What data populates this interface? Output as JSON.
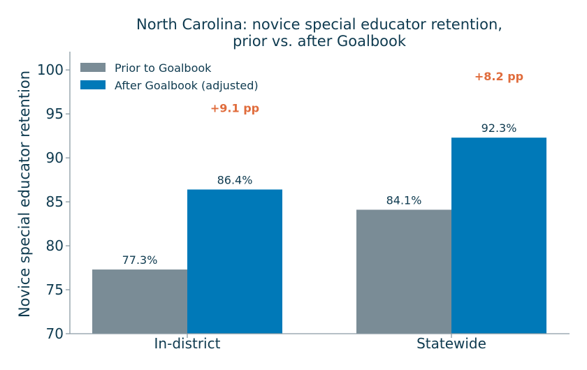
{
  "chart_data": {
    "type": "bar",
    "title_line1": "North Carolina: novice special educator retention,",
    "title_line2": "prior vs. after Goalbook",
    "ylabel": "Novice special educator retention",
    "xlabel": "",
    "ylim": [
      70,
      102
    ],
    "yticks": [
      "70",
      "75",
      "80",
      "85",
      "90",
      "95",
      "100"
    ],
    "categories": [
      "In-district",
      "Statewide"
    ],
    "series": [
      {
        "name": "Prior to Goalbook",
        "values": [
          77.3,
          84.1
        ],
        "labels": [
          "77.3%",
          "84.1%"
        ],
        "color": "#7a8c96"
      },
      {
        "name": "After Goalbook (adjusted)",
        "values": [
          86.4,
          92.3
        ],
        "labels": [
          "86.4%",
          "92.3%"
        ],
        "color": "#0079b8"
      }
    ],
    "annotations": [
      {
        "text": "+9.1 pp",
        "category": 0,
        "y": 95.7
      },
      {
        "text": "+8.2 pp",
        "category": 1,
        "y": 99.3
      }
    ],
    "annotation_color": "#e06c3c",
    "text_color": "#0e3a4f",
    "axis_color": "#8a9aa3",
    "legend_position": "top-left",
    "grid": false
  }
}
